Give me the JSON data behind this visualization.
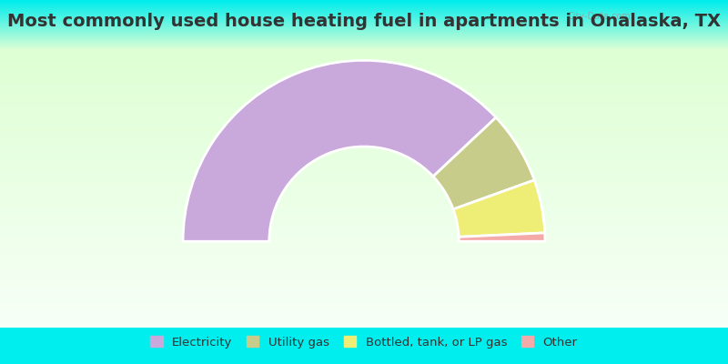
{
  "title": "Most commonly used house heating fuel in apartments in Onalaska, TX",
  "segments": [
    {
      "label": "Electricity",
      "value": 76.0,
      "color": "#C9A8DC"
    },
    {
      "label": "Utility gas",
      "value": 13.0,
      "color": "#C8CC8A"
    },
    {
      "label": "Bottled, tank, or LP gas",
      "value": 9.5,
      "color": "#EEEE77"
    },
    {
      "label": "Other",
      "value": 1.5,
      "color": "#F5AAAA"
    }
  ],
  "background_top": "#00EEEE",
  "title_color": "#333333",
  "title_fontsize": 14,
  "watermark": "City-Data.com"
}
